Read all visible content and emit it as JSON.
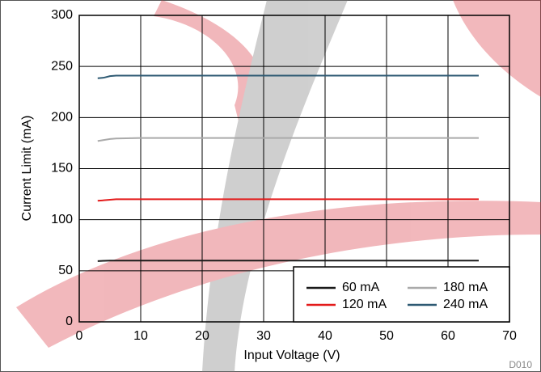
{
  "chart_data": {
    "type": "line",
    "x_label": "Input Voltage (V)",
    "y_label": "Current Limit (mA)",
    "figure_id": "D010",
    "x": [
      3,
      4,
      5,
      6,
      10,
      20,
      30,
      40,
      50,
      60,
      65
    ],
    "series": [
      {
        "name": "60 mA",
        "color": "#1a1a1a",
        "values": [
          59.5,
          59.8,
          60,
          60,
          60,
          60,
          60,
          60,
          60,
          60,
          60
        ]
      },
      {
        "name": "120 mA",
        "color": "#e31b1b",
        "values": [
          118.5,
          119,
          119.5,
          120,
          120,
          120,
          120,
          120,
          120,
          120,
          120
        ]
      },
      {
        "name": "180 mA",
        "color": "#aaaaaa",
        "values": [
          177,
          178,
          179,
          179.5,
          180,
          180,
          180,
          180,
          180,
          180,
          180
        ]
      },
      {
        "name": "240 mA",
        "color": "#2e5a73",
        "values": [
          238.5,
          239,
          240.5,
          241,
          241,
          241,
          241,
          241,
          241,
          241,
          241
        ]
      }
    ],
    "xlim": [
      0,
      70
    ],
    "xticks": [
      0,
      10,
      20,
      30,
      40,
      50,
      60,
      70
    ],
    "ylim": [
      0,
      300
    ],
    "yticks": [
      0,
      50,
      100,
      150,
      200,
      250,
      300
    ],
    "grid": true,
    "legend": "lower right"
  }
}
